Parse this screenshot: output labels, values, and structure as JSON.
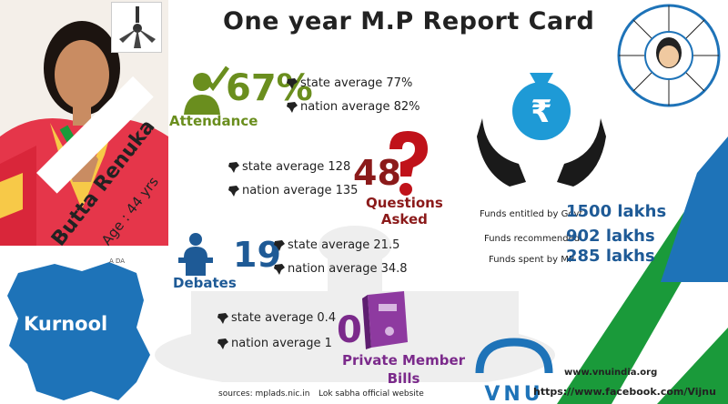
{
  "title": "One year M.P Report Card",
  "mp": {
    "name": "Butta Renuka",
    "age": "Age : 44 yrs",
    "district": "Kurnool",
    "map_label": "A DA"
  },
  "attendance": {
    "value": "67%",
    "label": "Attendance",
    "state": "state average 77%",
    "nation": "nation average 82%"
  },
  "questions": {
    "value": "48",
    "label_line1": "Questions",
    "label_line2": "Asked",
    "state": "state average 128",
    "nation": "nation average 135"
  },
  "debates": {
    "value": "19",
    "label": "Debates",
    "state": "state average 21.5",
    "nation": "nation average 34.8"
  },
  "bills": {
    "value": "0",
    "label_line1": "Private Member",
    "label_line2": "Bills",
    "state": "state average 0.4",
    "nation": "nation average 1"
  },
  "funds": {
    "symbol": "₹",
    "entitled_label": "Funds entitled by Govt.",
    "entitled_value": "1500 lakhs",
    "recommended_label": "Funds recommended",
    "recommended_value": "902 lakhs",
    "spent_label": "Funds spent by MP",
    "spent_value": "285 lakhs"
  },
  "footer": {
    "sources": "sources: mplads.nic.in",
    "lok_sabha": "Lok sabha official website",
    "website": "www.vnuindia.org",
    "facebook": "https://www.facebook.com/Vijnu",
    "logo_text": "VNU"
  },
  "colors": {
    "green": "#6a8e1e",
    "blue": "#1e73b8",
    "maroon": "#8b1a1a",
    "purple": "#7b2a8b",
    "party_green": "#1a9a3a"
  },
  "icons": [
    "fan-icon",
    "checkmark-person-icon",
    "question-head-icon",
    "podium-speaker-icon",
    "file-binder-icon",
    "money-bag-icon",
    "hands-icon",
    "india-map-icon"
  ]
}
